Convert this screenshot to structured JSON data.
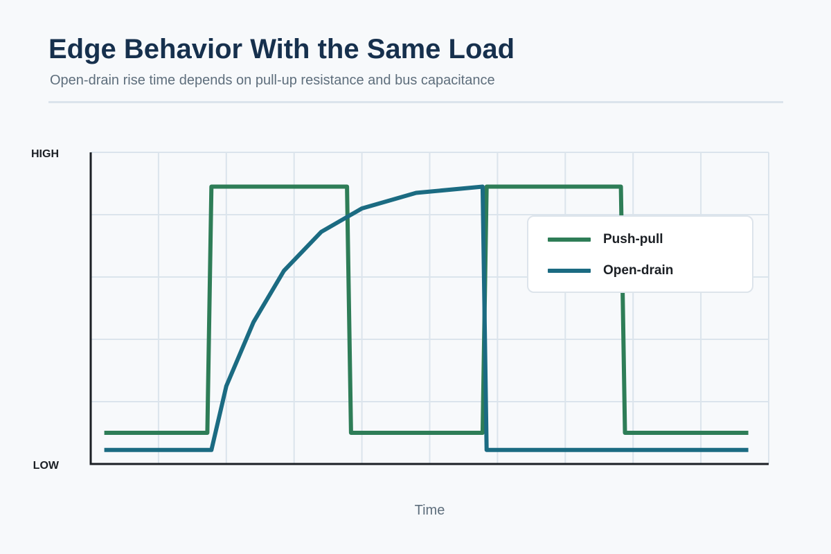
{
  "header": {
    "title": "Edge Behavior With the Same Load",
    "subtitle": "Open-drain rise time depends on pull-up resistance and bus capacitance"
  },
  "colors": {
    "background": "#f7f9fb",
    "title": "#16304d",
    "subtitle": "#5e6e7c",
    "grid": "#dbe4ec",
    "axis": "#1b1f24",
    "push_pull": "#2e7d57",
    "open_drain": "#1b6b82"
  },
  "chart_data": {
    "type": "line",
    "title": "Edge Behavior With the Same Load",
    "subtitle": "Open-drain rise time depends on pull-up resistance and bus capacitance",
    "xlabel": "Time",
    "ylabel": "",
    "y_tick_labels": {
      "high": "HIGH",
      "low": "LOW"
    },
    "xlim": [
      0,
      10
    ],
    "ylim": [
      0,
      1
    ],
    "grid": true,
    "legend_position": "top-right",
    "series": [
      {
        "name": "Push-pull",
        "color": "#2e7d57",
        "points": [
          [
            0.2,
            0.1
          ],
          [
            1.72,
            0.1
          ],
          [
            1.78,
            0.89
          ],
          [
            3.78,
            0.89
          ],
          [
            3.84,
            0.1
          ],
          [
            5.78,
            0.1
          ],
          [
            5.84,
            0.89
          ],
          [
            7.82,
            0.89
          ],
          [
            7.88,
            0.1
          ],
          [
            9.7,
            0.1
          ]
        ]
      },
      {
        "name": "Open-drain",
        "color": "#1b6b82",
        "points": [
          [
            0.2,
            0.045
          ],
          [
            1.78,
            0.045
          ],
          [
            2.0,
            0.25
          ],
          [
            2.4,
            0.455
          ],
          [
            2.85,
            0.62
          ],
          [
            3.4,
            0.745
          ],
          [
            4.0,
            0.82
          ],
          [
            4.8,
            0.87
          ],
          [
            5.78,
            0.89
          ],
          [
            5.84,
            0.045
          ],
          [
            9.7,
            0.045
          ]
        ]
      }
    ]
  }
}
